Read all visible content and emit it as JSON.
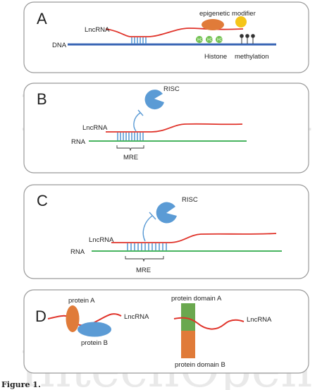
{
  "watermark": "IntechOpen",
  "caption": "Figure 1.",
  "colors": {
    "dna": "#3a66b5",
    "rna_strand": "#2faa4a",
    "lncrna": "#e0332a",
    "base_pair": "#5b9bd5",
    "risc": "#5b9bd5",
    "modifier": "#e07b39",
    "methyl_ball": "#f5c518",
    "histone": "#6cbf4a",
    "protein_a": "#e07b39",
    "protein_b": "#5b9bd5",
    "domain_a": "#6aa84f",
    "domain_b": "#e07b39"
  },
  "panels": {
    "a": {
      "letter": "A",
      "lncrna": "LncRNA",
      "dna": "DNA",
      "modifier": "epigenetic modifier",
      "histone": "Histone",
      "methylation": "methylation",
      "histone_marks": [
        "H3",
        "H3",
        "H3"
      ]
    },
    "b": {
      "letter": "B",
      "lncrna": "LncRNA",
      "rna": "RNA",
      "risc": "RISC",
      "mre": "MRE"
    },
    "c": {
      "letter": "C",
      "lncrna": "LncRNA",
      "rna": "RNA",
      "risc": "RISC",
      "mre": "MRE"
    },
    "d": {
      "letter": "D",
      "protein_a": "protein A",
      "protein_b": "protein B",
      "lncrna_left": "LncRNA",
      "domain_a": "protein domain A",
      "domain_b": "protein domain B",
      "lncrna_right": "LncRNA"
    }
  }
}
